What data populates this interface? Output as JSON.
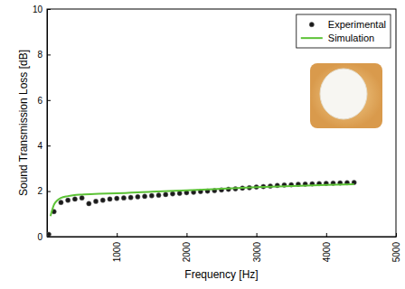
{
  "chart_data": {
    "type": "line",
    "x_label": "Frequency [Hz]",
    "y_label": "Sound Transmission Loss [dB]",
    "xlim": [
      0,
      5000
    ],
    "xticks": [
      1000,
      2000,
      3000,
      4000,
      5000
    ],
    "ylim": [
      0,
      10
    ],
    "yticks": [
      0,
      2,
      4,
      6,
      8,
      10
    ],
    "grid": false,
    "legend": "top-right",
    "series": [
      {
        "name": "Experimental",
        "type": "scatter",
        "marker": "circle",
        "color": "#1a1a1a",
        "x": [
          25,
          100,
          200,
          300,
          400,
          500,
          600,
          700,
          800,
          900,
          1000,
          1100,
          1200,
          1300,
          1400,
          1500,
          1600,
          1700,
          1800,
          1900,
          2000,
          2100,
          2200,
          2300,
          2400,
          2500,
          2600,
          2700,
          2800,
          2900,
          3000,
          3100,
          3200,
          3300,
          3400,
          3500,
          3600,
          3700,
          3800,
          3900,
          4000,
          4100,
          4200,
          4300,
          4400
        ],
        "values": [
          0.1,
          1.1,
          1.5,
          1.6,
          1.65,
          1.7,
          1.45,
          1.55,
          1.6,
          1.65,
          1.68,
          1.7,
          1.72,
          1.75,
          1.77,
          1.8,
          1.82,
          1.85,
          1.88,
          1.9,
          1.93,
          1.95,
          1.98,
          2.0,
          2.02,
          2.05,
          2.08,
          2.1,
          2.13,
          2.15,
          2.18,
          2.2,
          2.22,
          2.25,
          2.27,
          2.28,
          2.3,
          2.31,
          2.32,
          2.33,
          2.34,
          2.35,
          2.36,
          2.37,
          2.38
        ]
      },
      {
        "name": "Simulation",
        "type": "line",
        "line_style": "solid",
        "color": "#5cc236",
        "x": [
          50,
          100,
          150,
          200,
          300,
          500,
          750,
          1000,
          1500,
          2000,
          2500,
          3000,
          3500,
          4000,
          4400
        ],
        "values": [
          0.9,
          1.4,
          1.6,
          1.7,
          1.78,
          1.85,
          1.88,
          1.9,
          1.97,
          2.03,
          2.1,
          2.17,
          2.22,
          2.27,
          2.3
        ]
      }
    ]
  }
}
